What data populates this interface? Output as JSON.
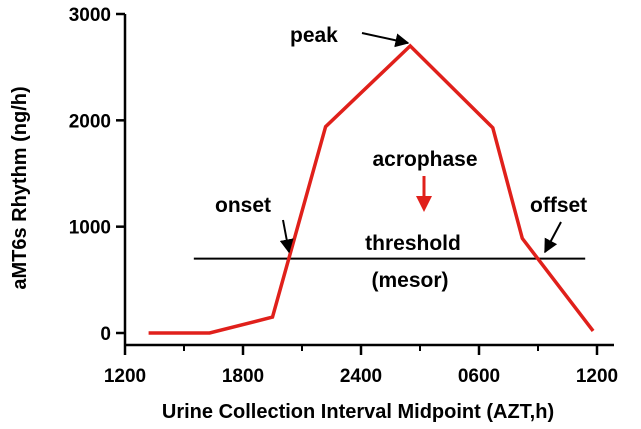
{
  "chart_data": {
    "type": "line",
    "xlabel": "Urine Collection Interval Midpoint (AZT,h)",
    "ylabel": "aMT6s Rhythm (ng/h)",
    "x_ticks": [
      "1200",
      "1800",
      "2400",
      "0600",
      "1200"
    ],
    "y_ticks": [
      0,
      1000,
      2000,
      3000
    ],
    "xlim": [
      0,
      24
    ],
    "ylim": [
      0,
      3000
    ],
    "grid": false,
    "legend": "none",
    "series": [
      {
        "color": "#e0201b",
        "x": [
          1.2,
          4.3,
          7.5,
          10.2,
          14.5,
          18.7,
          20.2,
          23.8
        ],
        "y": [
          0,
          0,
          150,
          1940,
          2700,
          1930,
          890,
          20
        ]
      }
    ],
    "threshold": {
      "y": 700,
      "x_start": 3.5,
      "x_end": 23.4,
      "color": "#000000"
    },
    "annotations": {
      "peak": "peak",
      "acrophase": "acrophase",
      "onset": "onset",
      "offset": "offset",
      "threshold": "threshold",
      "mesor": "(mesor)"
    },
    "acrophase_color": "#e0201b"
  }
}
